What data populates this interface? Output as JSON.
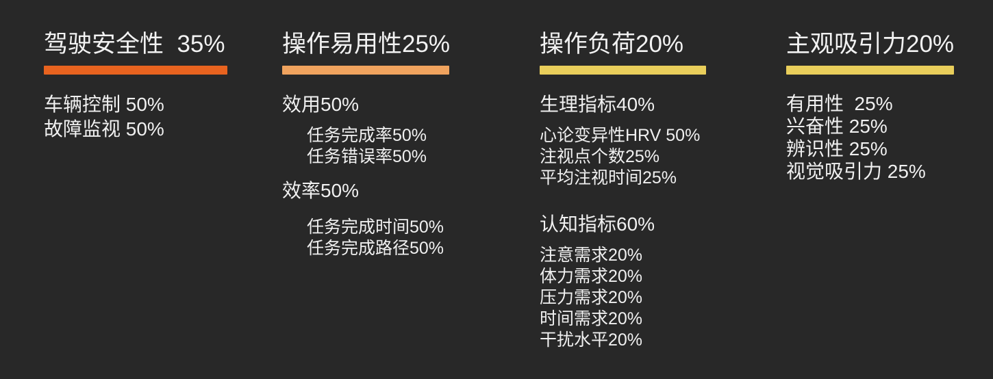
{
  "canvas": {
    "background_color": "#282828",
    "text_color": "#F0F0F0"
  },
  "columns": [
    {
      "id": "driving-safety",
      "header": "驾驶安全性  35%",
      "bar_color": "#E8631F",
      "blocks": [
        {
          "variant": "primary",
          "text": "车辆控制 50%"
        },
        {
          "variant": "primary",
          "text": "故障监视 50%"
        }
      ]
    },
    {
      "id": "ease-of-use",
      "header": "操作易用性25%",
      "bar_color": "#F0A35E",
      "blocks": [
        {
          "variant": "primary",
          "text": "效用50%"
        },
        {
          "variant": "spacer-sm"
        },
        {
          "variant": "sub-indent",
          "text": "任务完成率50%"
        },
        {
          "variant": "sub-indent",
          "text": "任务错误率50%"
        },
        {
          "variant": "spacer-md"
        },
        {
          "variant": "primary",
          "text": "效率50%"
        },
        {
          "variant": "spacer-lg"
        },
        {
          "variant": "sub-indent",
          "text": "任务完成时间50%"
        },
        {
          "variant": "sub-indent",
          "text": "任务完成路径50%"
        }
      ]
    },
    {
      "id": "operation-load",
      "header": "操作负荷20%",
      "bar_color": "#E9CE5B",
      "blocks": [
        {
          "variant": "primary",
          "text": "生理指标40%"
        },
        {
          "variant": "spacer-sm"
        },
        {
          "variant": "sub",
          "text": "心论变异性HRV 50%"
        },
        {
          "variant": "sub",
          "text": "注视点个数25%"
        },
        {
          "variant": "sub",
          "text": "平均注视时间25%"
        },
        {
          "variant": "spacer-xl"
        },
        {
          "variant": "primary",
          "text": "认知指标60%"
        },
        {
          "variant": "spacer-sm"
        },
        {
          "variant": "sub",
          "text": "注意需求20%"
        },
        {
          "variant": "sub",
          "text": "体力需求20%"
        },
        {
          "variant": "sub",
          "text": "压力需求20%"
        },
        {
          "variant": "sub",
          "text": "时间需求20%"
        },
        {
          "variant": "sub",
          "text": "干扰水平20%"
        }
      ]
    },
    {
      "id": "subjective-appeal",
      "header": "主观吸引力20%",
      "bar_color": "#E9CE5B",
      "blocks": [
        {
          "variant": "item-lg",
          "text": "有用性  25%"
        },
        {
          "variant": "item-lg",
          "text": "兴奋性 25%"
        },
        {
          "variant": "item-lg",
          "text": "辨识性 25%"
        },
        {
          "variant": "item-lg",
          "text": "视觉吸引力 25%"
        }
      ]
    }
  ]
}
